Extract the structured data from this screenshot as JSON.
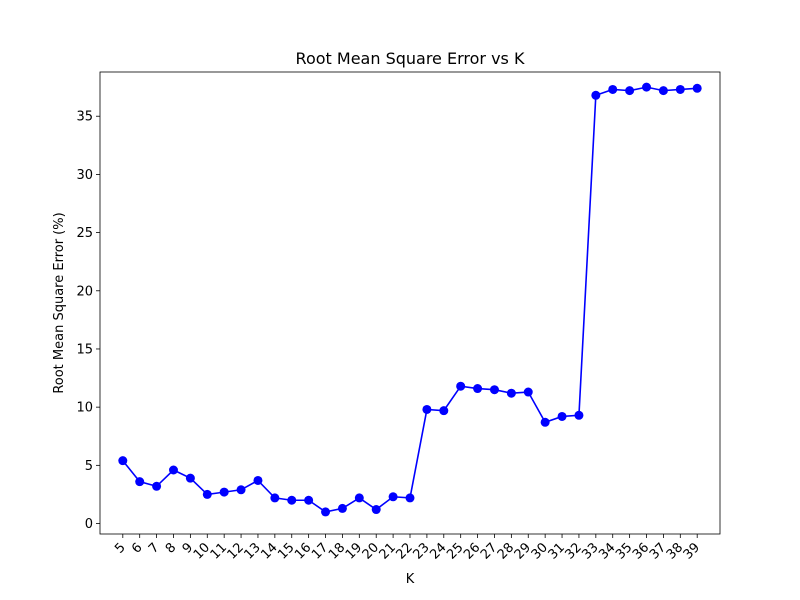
{
  "chart_data": {
    "type": "line",
    "title": "Root Mean Square Error vs K",
    "xlabel": "K",
    "ylabel": "Root Mean Square Error (%)",
    "x": [
      5,
      6,
      7,
      8,
      9,
      10,
      11,
      12,
      13,
      14,
      15,
      16,
      17,
      18,
      19,
      20,
      21,
      22,
      23,
      24,
      25,
      26,
      27,
      28,
      29,
      30,
      31,
      32,
      33,
      34,
      35,
      36,
      37,
      38,
      39
    ],
    "yticks": [
      0,
      5,
      10,
      15,
      20,
      25,
      30,
      35
    ],
    "ylim": [
      -0.9,
      38.8
    ],
    "xlim": [
      3.65,
      40.35
    ],
    "grid": false,
    "series": [
      {
        "color": "#0000ff",
        "marker": "circle",
        "values": [
          5.4,
          3.6,
          3.2,
          4.6,
          3.9,
          2.5,
          2.7,
          2.9,
          3.7,
          2.2,
          2.0,
          2.0,
          1.0,
          1.3,
          2.2,
          1.2,
          2.3,
          2.2,
          9.8,
          9.7,
          11.8,
          11.6,
          11.5,
          11.2,
          11.3,
          8.7,
          9.2,
          9.3,
          36.8,
          37.3,
          37.2,
          37.5,
          37.2,
          37.3,
          37.4
        ]
      }
    ]
  }
}
